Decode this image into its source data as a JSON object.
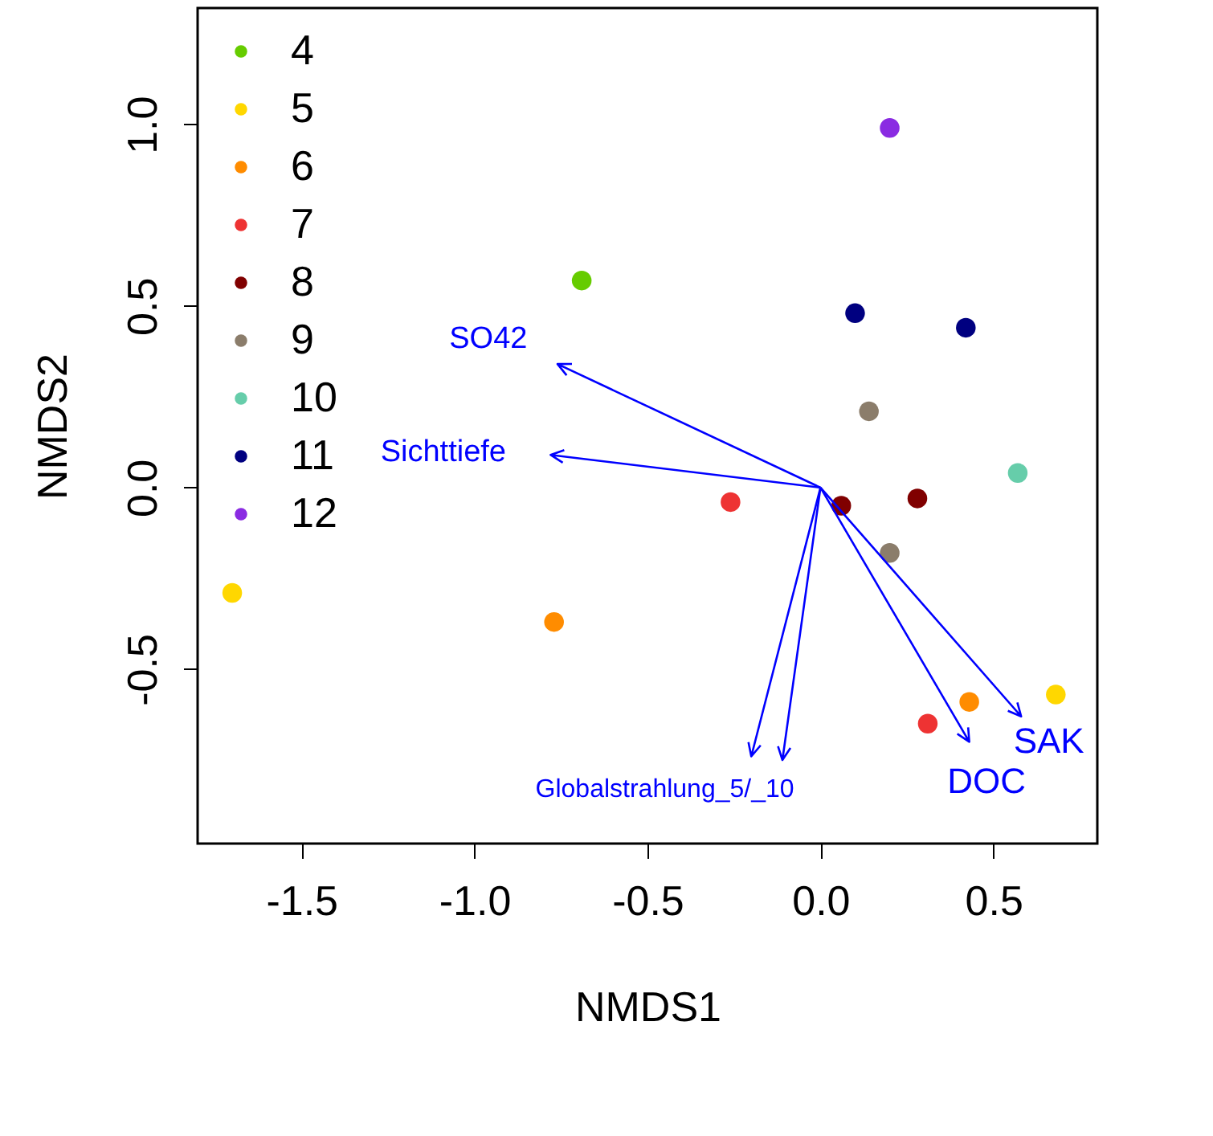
{
  "chart_data": {
    "type": "scatter",
    "xlabel": "NMDS1",
    "ylabel": "NMDS2",
    "legend": "top left",
    "marker": "circle",
    "grid": false,
    "xlim": [
      -1.8,
      0.8
    ],
    "ylim": [
      -0.98,
      1.32
    ],
    "xticks": [
      -1.5,
      {
        "value": -1,
        "label": "-1.0"
      },
      -0.5,
      {
        "value": 0,
        "label": "0.0"
      },
      0.5
    ],
    "yticks": [
      -0.5,
      {
        "value": 0,
        "label": "0.0"
      },
      0.5,
      {
        "value": 1,
        "label": "1.0"
      }
    ],
    "series": [
      {
        "name": "4",
        "color": "#66cc00",
        "x": [
          -0.69
        ],
        "values": [
          0.57
        ]
      },
      {
        "name": "5",
        "color": "#ffd700",
        "x": [
          -1.7,
          0.68
        ],
        "values": [
          -0.29,
          -0.57
        ]
      },
      {
        "name": "6",
        "color": "#ff8c00",
        "x": [
          -0.77,
          0.43
        ],
        "values": [
          -0.37,
          -0.59
        ]
      },
      {
        "name": "7",
        "color": "#ee3333",
        "x": [
          -0.26,
          0.31
        ],
        "values": [
          -0.04,
          -0.65
        ]
      },
      {
        "name": "8",
        "color": "#800000",
        "x": [
          0.06,
          0.28
        ],
        "values": [
          -0.05,
          -0.03
        ]
      },
      {
        "name": "9",
        "color": "#8b7d6b",
        "x": [
          0.14,
          0.2
        ],
        "values": [
          0.21,
          -0.18
        ]
      },
      {
        "name": "10",
        "color": "#66cdaa",
        "x": [
          0.57
        ],
        "values": [
          0.04
        ]
      },
      {
        "name": "11",
        "color": "#000080",
        "x": [
          0.1,
          0.42
        ],
        "values": [
          0.48,
          0.44
        ]
      },
      {
        "name": "12",
        "color": "#8a2be2",
        "x": [
          0.2
        ],
        "values": [
          0.99
        ]
      }
    ],
    "annotations": [
      "SO42",
      "Sichttiefe",
      "Globalstrahlung_5/_10",
      "DOC",
      "SAK"
    ]
  }
}
